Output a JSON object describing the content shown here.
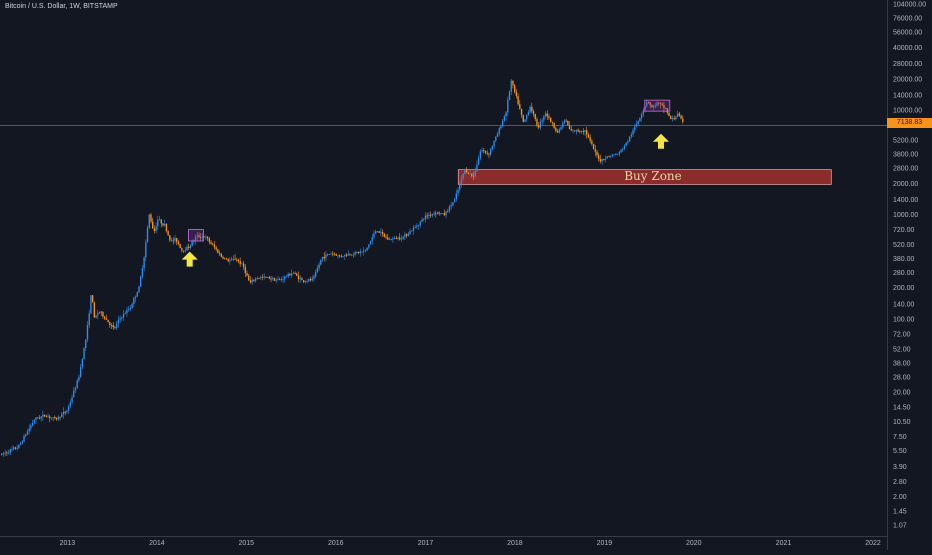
{
  "symbol_title": "Bitcoin / U.S. Dollar, 1W, BITSTAMP",
  "colors": {
    "background": "#131722",
    "axis_line": "#363a45",
    "tick_text": "#b2b5be",
    "up_candle": "#2e8ff0",
    "down_candle": "#f7931a",
    "price_line": "#8a6a2a",
    "price_badge": "#f7931a",
    "buy_zone_fill": "#8b2b2b",
    "buy_zone_border": "#d9a0a0",
    "arrow": "#f5e642",
    "range_box": "#d36be0"
  },
  "chart_data": {
    "type": "candlestick",
    "title": "Bitcoin / U.S. Dollar, 1W, BITSTAMP",
    "y_scale": "log",
    "ylim": [
      0.9,
      104000
    ],
    "xlim": [
      "2012-04-01",
      "2022-02-15"
    ],
    "y_ticks": [
      "104000.00",
      "76000.00",
      "56000.00",
      "40000.00",
      "28000.00",
      "20000.00",
      "14000.00",
      "10000.00",
      "7138.83",
      "5200.00",
      "3800.00",
      "2800.00",
      "2000.00",
      "1400.00",
      "1000.00",
      "720.00",
      "520.00",
      "380.00",
      "280.00",
      "200.00",
      "140.00",
      "100.00",
      "72.00",
      "52.00",
      "38.00",
      "28.00",
      "20.00",
      "14.50",
      "10.50",
      "7.50",
      "5.50",
      "3.90",
      "2.80",
      "2.00",
      "1.45",
      "1.07"
    ],
    "x_ticks": [
      "2013",
      "2014",
      "2015",
      "2016",
      "2017",
      "2018",
      "2019",
      "2020",
      "2021",
      "2022"
    ],
    "last_price": "7138.83",
    "price_anchors": [
      [
        "2012-04-01",
        5.0
      ],
      [
        "2012-06-15",
        6.0
      ],
      [
        "2012-08-20",
        11.0
      ],
      [
        "2012-10-01",
        12.0
      ],
      [
        "2012-11-15",
        11.0
      ],
      [
        "2013-01-01",
        13.5
      ],
      [
        "2013-02-15",
        27.0
      ],
      [
        "2013-03-20",
        70.0
      ],
      [
        "2013-04-10",
        190.0
      ],
      [
        "2013-04-20",
        100.0
      ],
      [
        "2013-05-10",
        120.0
      ],
      [
        "2013-06-15",
        95.0
      ],
      [
        "2013-07-10",
        80.0
      ],
      [
        "2013-08-01",
        100.0
      ],
      [
        "2013-09-15",
        130.0
      ],
      [
        "2013-10-20",
        200.0
      ],
      [
        "2013-11-10",
        400.0
      ],
      [
        "2013-12-01",
        1000.0
      ],
      [
        "2013-12-20",
        680.0
      ],
      [
        "2014-01-05",
        900.0
      ],
      [
        "2014-02-01",
        800.0
      ],
      [
        "2014-02-25",
        560.0
      ],
      [
        "2014-03-20",
        580.0
      ],
      [
        "2014-04-15",
        450.0
      ],
      [
        "2014-05-15",
        500.0
      ],
      [
        "2014-06-10",
        620.0
      ],
      [
        "2014-07-15",
        620.0
      ],
      [
        "2014-08-20",
        500.0
      ],
      [
        "2014-09-20",
        400.0
      ],
      [
        "2014-10-20",
        360.0
      ],
      [
        "2014-11-20",
        380.0
      ],
      [
        "2014-12-20",
        320.0
      ],
      [
        "2015-01-15",
        220.0
      ],
      [
        "2015-02-15",
        250.0
      ],
      [
        "2015-04-01",
        250.0
      ],
      [
        "2015-05-15",
        235.0
      ],
      [
        "2015-07-10",
        280.0
      ],
      [
        "2015-08-20",
        230.0
      ],
      [
        "2015-10-01",
        240.0
      ],
      [
        "2015-11-05",
        390.0
      ],
      [
        "2015-12-15",
        430.0
      ],
      [
        "2016-01-15",
        400.0
      ],
      [
        "2016-03-01",
        420.0
      ],
      [
        "2016-05-01",
        450.0
      ],
      [
        "2016-06-15",
        720.0
      ],
      [
        "2016-08-01",
        580.0
      ],
      [
        "2016-10-01",
        610.0
      ],
      [
        "2016-11-15",
        740.0
      ],
      [
        "2017-01-05",
        980.0
      ],
      [
        "2017-02-15",
        1050.0
      ],
      [
        "2017-03-20",
        1000.0
      ],
      [
        "2017-05-01",
        1400.0
      ],
      [
        "2017-06-10",
        2700.0
      ],
      [
        "2017-07-15",
        2300.0
      ],
      [
        "2017-08-15",
        4200.0
      ],
      [
        "2017-09-15",
        3800.0
      ],
      [
        "2017-10-20",
        5800.0
      ],
      [
        "2017-11-25",
        9500.0
      ],
      [
        "2017-12-17",
        19000.0
      ],
      [
        "2018-01-15",
        11500.0
      ],
      [
        "2018-02-05",
        7500.0
      ],
      [
        "2018-03-05",
        11000.0
      ],
      [
        "2018-04-05",
        6800.0
      ],
      [
        "2018-05-05",
        9500.0
      ],
      [
        "2018-06-25",
        6100.0
      ],
      [
        "2018-07-25",
        8200.0
      ],
      [
        "2018-08-15",
        6300.0
      ],
      [
        "2018-10-15",
        6400.0
      ],
      [
        "2018-11-25",
        3900.0
      ],
      [
        "2018-12-15",
        3300.0
      ],
      [
        "2019-01-15",
        3600.0
      ],
      [
        "2019-03-01",
        3850.0
      ],
      [
        "2019-04-05",
        5000.0
      ],
      [
        "2019-05-20",
        8000.0
      ],
      [
        "2019-06-26",
        12500.0
      ],
      [
        "2019-07-15",
        10500.0
      ],
      [
        "2019-08-05",
        11800.0
      ],
      [
        "2019-09-10",
        10300.0
      ],
      [
        "2019-09-26",
        8200.0
      ],
      [
        "2019-10-15",
        8300.0
      ],
      [
        "2019-10-27",
        9400.0
      ],
      [
        "2019-11-22",
        7138.83
      ]
    ],
    "annotations": [
      {
        "type": "rect",
        "label": "Buy Zone",
        "x_start": "2017-05-15",
        "x_end": "2021-07-15",
        "y_low": 1950,
        "y_high": 2700
      },
      {
        "type": "arrow",
        "direction": "up",
        "x": "2014-05-15",
        "y": 380
      },
      {
        "type": "arrow",
        "direction": "up",
        "x": "2019-08-20",
        "y": 5100
      },
      {
        "type": "rect",
        "x_start": "2014-05-10",
        "x_end": "2014-07-10",
        "y_low": 560,
        "y_high": 720
      },
      {
        "type": "rect",
        "x_start": "2019-06-15",
        "x_end": "2019-09-25",
        "y_low": 9800,
        "y_high": 12500
      }
    ]
  }
}
